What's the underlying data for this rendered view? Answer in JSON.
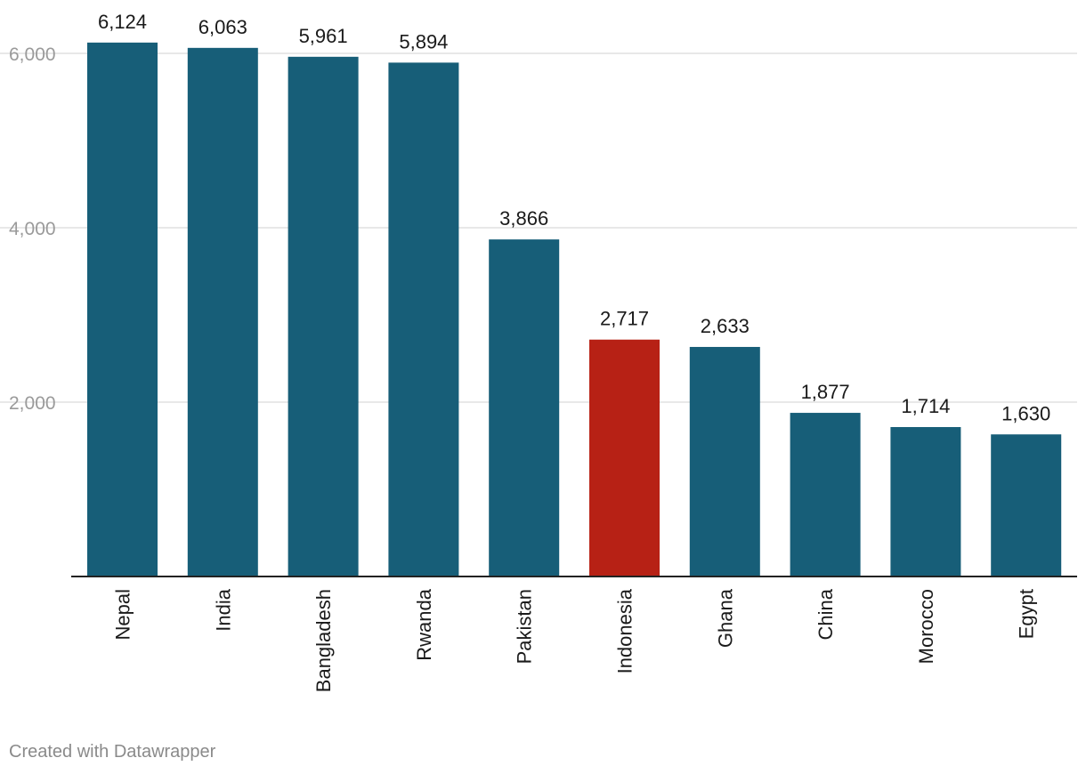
{
  "chart_data": {
    "type": "bar",
    "title": "",
    "xlabel": "",
    "ylabel": "",
    "categories": [
      "Nepal",
      "India",
      "Bangladesh",
      "Rwanda",
      "Pakistan",
      "Indonesia",
      "Ghana",
      "China",
      "Morocco",
      "Egypt"
    ],
    "values": [
      6124,
      6063,
      5961,
      5894,
      3866,
      2717,
      2633,
      1877,
      1714,
      1630
    ],
    "value_labels": [
      "6,124",
      "6,063",
      "5,961",
      "5,894",
      "3,866",
      "2,717",
      "2,633",
      "1,877",
      "1,714",
      "1,630"
    ],
    "highlight": "Indonesia",
    "yticks": [
      2000,
      4000,
      6000
    ],
    "ytick_labels": [
      "2,000",
      "4,000",
      "6,000"
    ],
    "ylim": [
      0,
      6000
    ],
    "grid": true,
    "colors": {
      "bar": "#175e78",
      "highlight": "#b72115",
      "grid": "#e0e0e0",
      "baseline": "#222222"
    }
  },
  "footer": {
    "credit": "Created with Datawrapper"
  }
}
